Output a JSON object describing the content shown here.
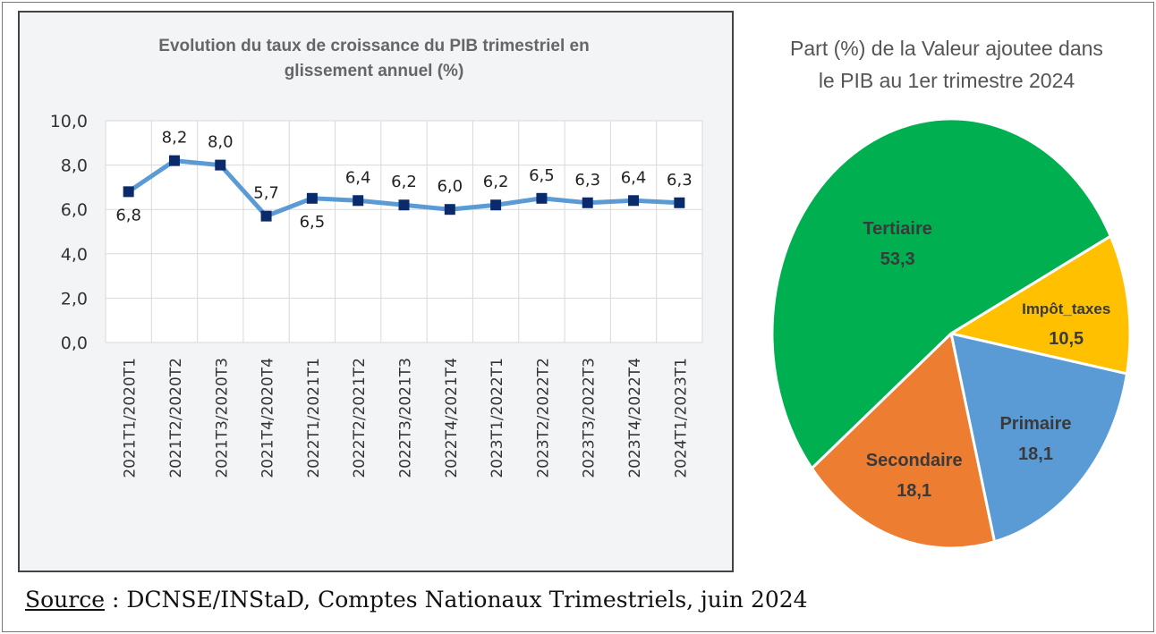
{
  "chart_data": [
    {
      "type": "line",
      "title": "Evolution du taux de croissance du PIB trimestriel en glissement annuel (%)",
      "title_lines": [
        "Evolution du taux de croissance du PIB trimestriel en",
        "glissement annuel (%)"
      ],
      "categories": [
        "2021T1/2020T1",
        "2021T2/2020T2",
        "2021T3/2020T3",
        "2021T4/2020T4",
        "2022T1/2021T1",
        "2022T2/2021T2",
        "2022T3/2021T3",
        "2022T4/2021T4",
        "2023T1/2022T1",
        "2023T2/2022T2",
        "2023T3/2022T3",
        "2023T4/2022T4",
        "2024T1/2023T1"
      ],
      "values": [
        6.8,
        8.2,
        8.0,
        5.7,
        6.5,
        6.4,
        6.2,
        6.0,
        6.2,
        6.5,
        6.3,
        6.4,
        6.3
      ],
      "data_labels": [
        "6,8",
        "8,2",
        "8,0",
        "5,7",
        "6,5",
        "6,4",
        "6,2",
        "6,0",
        "6,2",
        "6,5",
        "6,3",
        "6,4",
        "6,3"
      ],
      "yticks": [
        "0,0",
        "2,0",
        "4,0",
        "6,0",
        "8,0",
        "10,0"
      ],
      "ylim": [
        0,
        10
      ],
      "grid": true,
      "line_color": "#5b9bd5",
      "marker_color": "#0a2a6b"
    },
    {
      "type": "pie",
      "title": "Part (%) de la Valeur ajoutee dans le PIB au 1er trimestre 2024",
      "title_lines": [
        "Part (%) de la Valeur ajoutee dans",
        "le PIB au 1er trimestre 2024"
      ],
      "slices": [
        {
          "label": "Impôt_taxes",
          "value": 10.5,
          "value_label": "10,5",
          "color": "#ffc000"
        },
        {
          "label": "Primaire",
          "value": 18.1,
          "value_label": "18,1",
          "color": "#5b9bd5"
        },
        {
          "label": "Secondaire",
          "value": 18.1,
          "value_label": "18,1",
          "color": "#ed7d31"
        },
        {
          "label": "Tertiaire",
          "value": 53.3,
          "value_label": "53,3",
          "color": "#00b050"
        }
      ]
    }
  ],
  "source": {
    "label": "Source",
    "text": " : DCNSE/INStaD, Comptes Nationaux Trimestriels, juin 2024"
  }
}
